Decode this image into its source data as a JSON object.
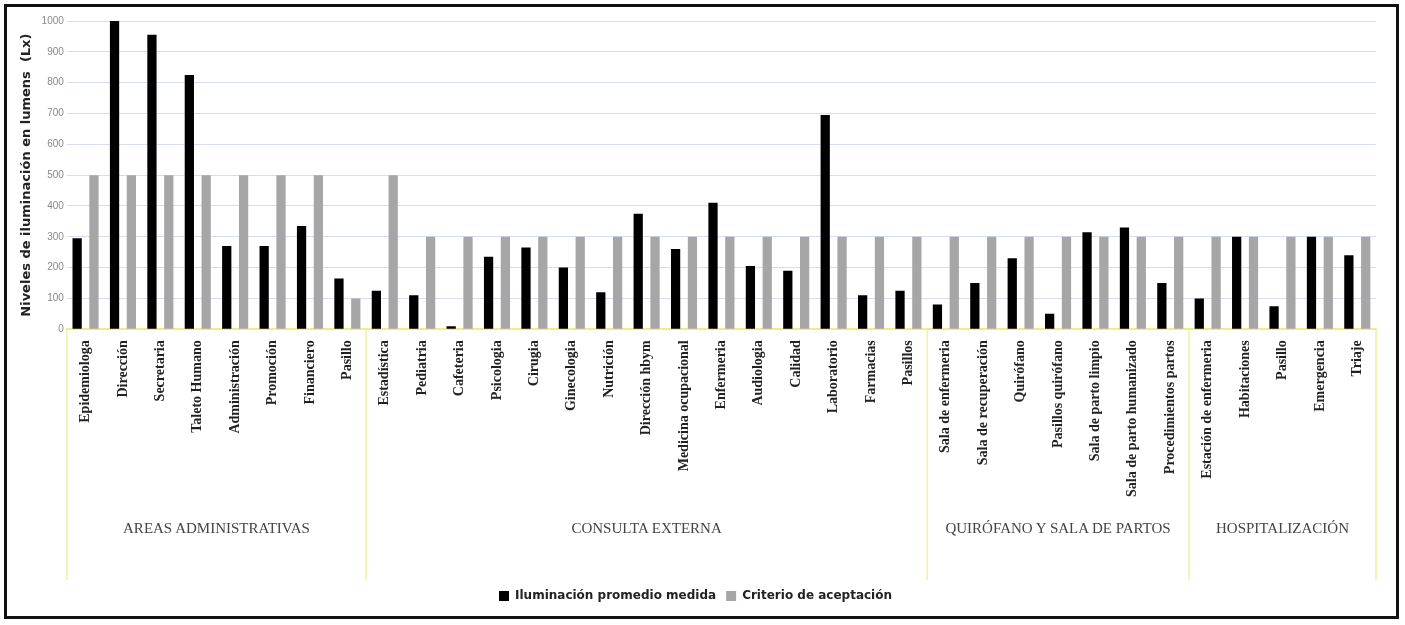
{
  "chart_data": {
    "type": "bar",
    "ylabel": "Niveles de iluminación en lumens  (Lx)",
    "categories": [
      "Epidemiologa",
      "Dirección",
      "Secretaria",
      "Taleto Humano",
      "Administración",
      "Promoción",
      "Financiero",
      "Pasillo",
      "Estadística",
      "Pediatria",
      "Cafeteria",
      "Psicologia",
      "Cirugia",
      "Ginecologia",
      "Nutrición",
      "Dirección hbym",
      "Medicina ocupacional",
      "Enfermeria",
      "Audiologia",
      "Calidad",
      "Laboratorio",
      "Farmacias",
      "Pasillos",
      "Sala de enfermeria",
      "Sala de recuperación",
      "Quirófano",
      "Pasillos quirófano",
      "Sala de parto limpio",
      "Sala de parto humanizado",
      "Procedimientos partos",
      "Estación de enfermeria",
      "Habitaciones",
      "Pasillo",
      "Emergencia",
      "Triaje"
    ],
    "series": [
      {
        "name": "Iluminación promedio medida",
        "color": "#000000",
        "values": [
          295,
          1000,
          955,
          825,
          270,
          270,
          335,
          165,
          125,
          110,
          10,
          235,
          265,
          200,
          120,
          375,
          260,
          410,
          205,
          190,
          695,
          110,
          125,
          80,
          150,
          230,
          50,
          315,
          330,
          150,
          100,
          300,
          75,
          300,
          240
        ]
      },
      {
        "name": "Criterio de aceptación",
        "color": "#a6a6a6",
        "values": [
          500,
          500,
          500,
          500,
          500,
          500,
          500,
          100,
          500,
          300,
          300,
          300,
          300,
          300,
          300,
          300,
          300,
          300,
          300,
          300,
          300,
          300,
          300,
          300,
          300,
          300,
          300,
          300,
          300,
          300,
          300,
          300,
          300,
          300,
          300
        ]
      }
    ],
    "ylim": [
      0,
      1000
    ],
    "yticks": [
      0,
      100,
      200,
      300,
      400,
      500,
      600,
      700,
      800,
      900,
      1000
    ],
    "grid": "y",
    "legend": "bottom",
    "annotations": [
      "AREAS ADMINISTRATIVAS",
      "CONSULTA EXTERNA",
      "QUIRÓFANO Y SALA DE PARTOS",
      "HOSPITALIZACIÓN"
    ]
  }
}
